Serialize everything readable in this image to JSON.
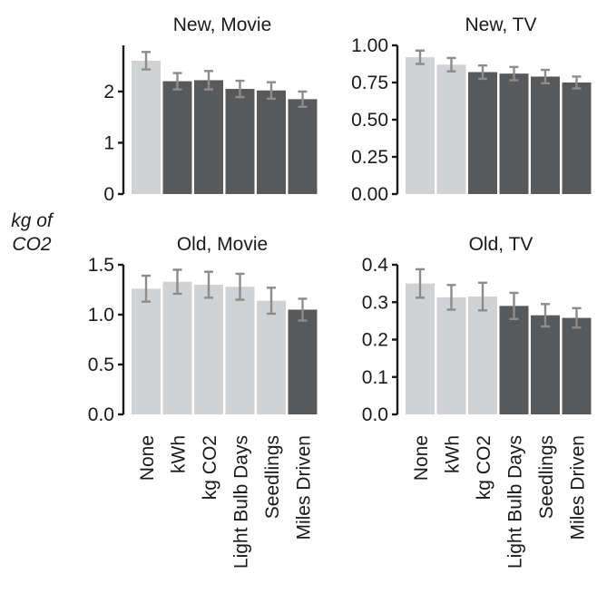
{
  "chart_data": {
    "type": "bar",
    "ylabel": "kg of CO2",
    "categories": [
      "None",
      "kWh",
      "kg CO2",
      "Light Bulb Days",
      "Seedlings",
      "Miles Driven"
    ],
    "colors": {
      "light": "#d1d2d4",
      "dark": "#58595b",
      "error_bar": "#8c8c8c",
      "axis": "#1a1a1a"
    },
    "panels": [
      {
        "title": "New, Movie",
        "ylim": [
          0,
          2.9
        ],
        "yticks": [
          "0",
          "1",
          "2"
        ],
        "ytick_values": [
          0,
          1,
          2
        ],
        "values": [
          2.6,
          2.2,
          2.22,
          2.05,
          2.02,
          1.85
        ],
        "errors": [
          0.17,
          0.16,
          0.18,
          0.16,
          0.16,
          0.15
        ],
        "shades": [
          "light",
          "dark",
          "dark",
          "dark",
          "dark",
          "dark"
        ]
      },
      {
        "title": "New, TV",
        "ylim": [
          0,
          1.0
        ],
        "yticks": [
          "0.00",
          "0.25",
          "0.50",
          "0.75",
          "1.00"
        ],
        "ytick_values": [
          0,
          0.25,
          0.5,
          0.75,
          1.0
        ],
        "values": [
          0.92,
          0.87,
          0.82,
          0.81,
          0.79,
          0.75
        ],
        "errors": [
          0.045,
          0.045,
          0.045,
          0.045,
          0.045,
          0.04
        ],
        "shades": [
          "light",
          "light",
          "dark",
          "dark",
          "dark",
          "dark"
        ]
      },
      {
        "title": "Old, Movie",
        "ylim": [
          0,
          1.5
        ],
        "yticks": [
          "0.0",
          "0.5",
          "1.0",
          "1.5"
        ],
        "ytick_values": [
          0,
          0.5,
          1.0,
          1.5
        ],
        "values": [
          1.26,
          1.33,
          1.3,
          1.28,
          1.14,
          1.05
        ],
        "errors": [
          0.13,
          0.12,
          0.13,
          0.13,
          0.13,
          0.11
        ],
        "shades": [
          "light",
          "light",
          "light",
          "light",
          "light",
          "dark"
        ]
      },
      {
        "title": "Old, TV",
        "ylim": [
          0,
          0.4
        ],
        "yticks": [
          "0.0",
          "0.1",
          "0.2",
          "0.3",
          "0.4"
        ],
        "ytick_values": [
          0,
          0.1,
          0.2,
          0.3,
          0.4
        ],
        "values": [
          0.35,
          0.313,
          0.315,
          0.29,
          0.265,
          0.258
        ],
        "errors": [
          0.038,
          0.033,
          0.037,
          0.035,
          0.03,
          0.026
        ],
        "shades": [
          "light",
          "light",
          "light",
          "dark",
          "dark",
          "dark"
        ]
      }
    ]
  }
}
